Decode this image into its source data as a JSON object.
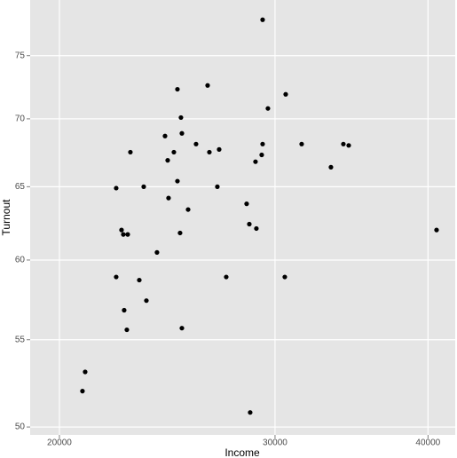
{
  "chart_data": {
    "type": "scatter",
    "x_label": "Income",
    "y_label": "Turnout",
    "x_log": true,
    "y_log": true,
    "grid": true,
    "color": "#000000",
    "xlim": [
      18930,
      42100
    ],
    "ylim": [
      49.57,
      79.7
    ],
    "xticks": [
      20000,
      30000,
      40000
    ],
    "yticks": [
      50,
      55,
      60,
      65,
      70,
      75
    ],
    "x": [
      29308,
      30608,
      29602,
      26428,
      24970,
      25136,
      25180,
      24394,
      25860,
      26516,
      27008,
      29308,
      29258,
      31540,
      34114,
      34458,
      33326,
      28918,
      22856,
      24516,
      24804,
      23436,
      24970,
      26916,
      22254,
      24556,
      25476,
      28440,
      28584,
      28966,
      25094,
      22478,
      22554,
      22742,
      40648,
      24028,
      23242,
      22254,
      27370,
      30556,
      23554,
      22590,
      22704,
      25180,
      20992,
      20886,
      28630
    ],
    "values": [
      78.0,
      71.9,
      70.8,
      72.6,
      72.3,
      70.1,
      68.9,
      68.7,
      68.1,
      67.5,
      67.7,
      68.1,
      67.3,
      68.1,
      68.1,
      68.0,
      66.4,
      66.8,
      67.5,
      66.9,
      67.5,
      65.0,
      65.4,
      65.0,
      64.9,
      64.2,
      63.4,
      63.8,
      62.4,
      62.1,
      61.8,
      62.0,
      61.7,
      61.7,
      62.0,
      60.5,
      58.7,
      58.9,
      58.9,
      58.9,
      57.4,
      56.8,
      55.6,
      55.7,
      53.1,
      52.0,
      50.8
    ]
  }
}
